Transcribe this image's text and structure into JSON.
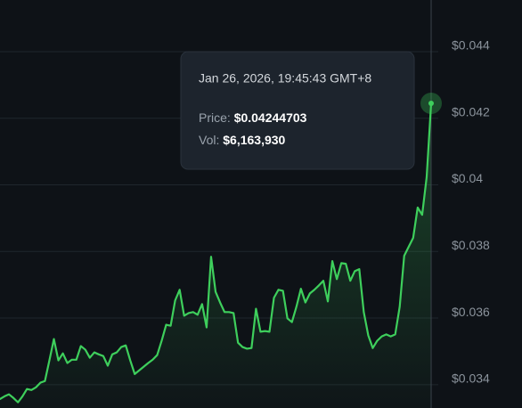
{
  "chart_data": {
    "type": "line",
    "color": "#3ecf5c",
    "grid": true,
    "ylim": [
      0.0333,
      0.04555
    ],
    "yticks": [
      {
        "value": 0.034,
        "label": "$0.034"
      },
      {
        "value": 0.036,
        "label": "$0.036"
      },
      {
        "value": 0.038,
        "label": "$0.038"
      },
      {
        "value": 0.04,
        "label": "$0.04"
      },
      {
        "value": 0.042,
        "label": "$0.042"
      },
      {
        "value": 0.044,
        "label": "$0.044"
      }
    ],
    "values": [
      0.03357,
      0.03365,
      0.03371,
      0.0336,
      0.03347,
      0.03365,
      0.03387,
      0.03384,
      0.03392,
      0.03406,
      0.03411,
      0.03473,
      0.03537,
      0.03473,
      0.03494,
      0.03465,
      0.03475,
      0.03475,
      0.03516,
      0.03505,
      0.03481,
      0.03497,
      0.03491,
      0.03486,
      0.03457,
      0.03491,
      0.03497,
      0.03513,
      0.03518,
      0.03473,
      0.03432,
      0.03443,
      0.03454,
      0.03465,
      0.03475,
      0.03489,
      0.03532,
      0.0358,
      0.03577,
      0.03653,
      0.03685,
      0.03607,
      0.03615,
      0.03618,
      0.0361,
      0.03642,
      0.03572,
      0.03784,
      0.03679,
      0.03647,
      0.03618,
      0.03618,
      0.03615,
      0.03526,
      0.03513,
      0.03508,
      0.0351,
      0.03628,
      0.03559,
      0.03561,
      0.03559,
      0.03661,
      0.03685,
      0.03682,
      0.03599,
      0.03588,
      0.03634,
      0.03688,
      0.03647,
      0.03674,
      0.03685,
      0.03698,
      0.03712,
      0.0365,
      0.03771,
      0.03717,
      0.03765,
      0.03763,
      0.03712,
      0.03741,
      0.03747,
      0.03618,
      0.03548,
      0.0351,
      0.03532,
      0.03545,
      0.03551,
      0.03545,
      0.03551,
      0.03634,
      0.03787,
      0.03814,
      0.03841,
      0.03932,
      0.0391,
      0.04023,
      0.04244703
    ],
    "tooltip": {
      "title": "Jan 26, 2026, 19:45:43 GMT+8",
      "rows": [
        {
          "label": "Price:",
          "value": "$0.04244703"
        },
        {
          "label": "Vol:",
          "value": "$6,163,930"
        }
      ]
    }
  }
}
